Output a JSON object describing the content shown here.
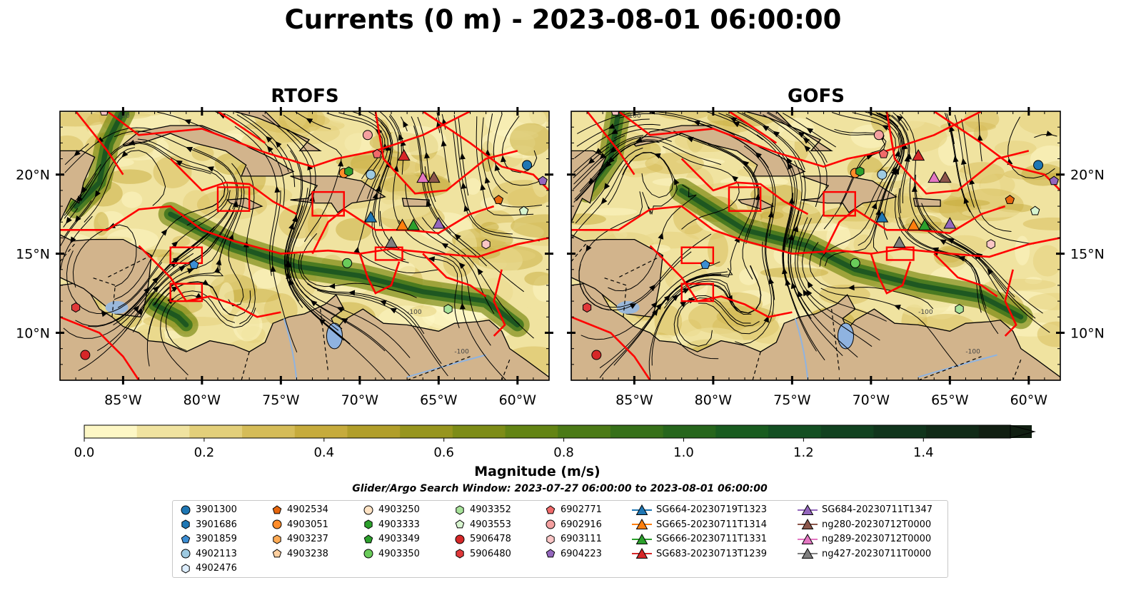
{
  "title": "Currents (0 m) - 2023-08-01 06:00:00",
  "panels": [
    {
      "title": "RTOFS"
    },
    {
      "title": "GOFS"
    }
  ],
  "map": {
    "lon_ticks": [
      "85°W",
      "80°W",
      "75°W",
      "70°W",
      "65°W",
      "60°W"
    ],
    "lat_ticks": [
      "20°N",
      "15°N",
      "10°N"
    ],
    "land_color": "#d2b48c",
    "eez_color": "#ff0000",
    "contour_labels": [
      "-100",
      "-100",
      "-100"
    ]
  },
  "colorbar": {
    "ticks": [
      "0.0",
      "0.2",
      "0.4",
      "0.6",
      "0.8",
      "1.0",
      "1.2",
      "1.4"
    ],
    "label": "Magnitude (m/s)",
    "colors": [
      "#fdf7c5",
      "#f0e3a0",
      "#e3cf7a",
      "#d5bc58",
      "#c6ab3c",
      "#b19e2a",
      "#97951e",
      "#7d8c17",
      "#638414",
      "#4b7a16",
      "#367019",
      "#26661c",
      "#195c20",
      "#134f22",
      "#114220",
      "#10351c",
      "#102a17",
      "#111f12"
    ]
  },
  "search_window": "Glider/Argo Search Window: 2023-07-27 06:00:00 to 2023-08-01 06:00:00",
  "legend": {
    "columns": [
      [
        {
          "label": "3901300",
          "marker": "circle",
          "color": "#1f77b4"
        },
        {
          "label": "3901686",
          "marker": "hexagon",
          "color": "#1f77b4"
        },
        {
          "label": "3901859",
          "marker": "pentagon",
          "color": "#3c8ed4"
        },
        {
          "label": "4902113",
          "marker": "circle",
          "color": "#9ecae1"
        },
        {
          "label": "4902476",
          "marker": "hexagon",
          "color": "#ddeeff"
        }
      ],
      [
        {
          "label": "4902534",
          "marker": "pentagon",
          "color": "#e6660e"
        },
        {
          "label": "4903051",
          "marker": "circle",
          "color": "#ff8c2a"
        },
        {
          "label": "4903237",
          "marker": "hexagon",
          "color": "#ffab55"
        },
        {
          "label": "4903238",
          "marker": "pentagon",
          "color": "#ffd0a0"
        }
      ],
      [
        {
          "label": "4903250",
          "marker": "circle",
          "color": "#ffe3c4"
        },
        {
          "label": "4903333",
          "marker": "hexagon",
          "color": "#2ca02c"
        },
        {
          "label": "4903349",
          "marker": "pentagon",
          "color": "#2ca02c"
        },
        {
          "label": "4903350",
          "marker": "circle",
          "color": "#6acb5a"
        }
      ],
      [
        {
          "label": "4903352",
          "marker": "hexagon",
          "color": "#a8e39a"
        },
        {
          "label": "4903553",
          "marker": "pentagon",
          "color": "#d8f5d0"
        },
        {
          "label": "5906478",
          "marker": "circle",
          "color": "#d62728"
        },
        {
          "label": "5906480",
          "marker": "hexagon",
          "color": "#e0393a"
        }
      ],
      [
        {
          "label": "6902771",
          "marker": "pentagon",
          "color": "#f06a6a"
        },
        {
          "label": "6902916",
          "marker": "circle",
          "color": "#f4a0a0"
        },
        {
          "label": "6903111",
          "marker": "hexagon",
          "color": "#fbc6c6"
        },
        {
          "label": "6904223",
          "marker": "pentagon",
          "color": "#9467bd"
        }
      ],
      [
        {
          "label": "SG664-20230719T1323",
          "marker": "triangle-line",
          "color": "#1f77b4"
        },
        {
          "label": "SG665-20230711T1314",
          "marker": "triangle-line",
          "color": "#ff7f0e"
        },
        {
          "label": "SG666-20230711T1331",
          "marker": "triangle-line",
          "color": "#2ca02c"
        },
        {
          "label": "SG683-20230713T1239",
          "marker": "triangle-line",
          "color": "#d62728"
        }
      ],
      [
        {
          "label": "SG684-20230711T1347",
          "marker": "triangle-line",
          "color": "#9467bd"
        },
        {
          "label": "ng280-20230712T0000",
          "marker": "triangle-line",
          "color": "#8c564b"
        },
        {
          "label": "ng289-20230712T0000",
          "marker": "triangle-line",
          "color": "#e377c2"
        },
        {
          "label": "ng427-20230711T0000",
          "marker": "triangle-line",
          "color": "#7f7f7f"
        }
      ]
    ]
  }
}
